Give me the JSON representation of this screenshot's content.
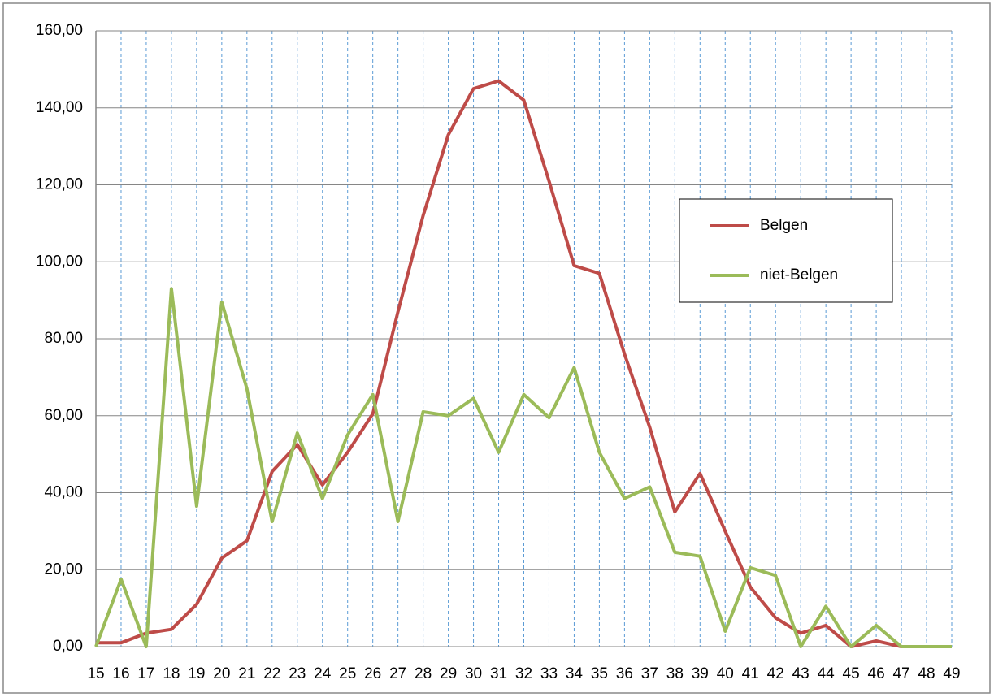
{
  "chart_data": {
    "type": "line",
    "x": [
      15,
      16,
      17,
      18,
      19,
      20,
      21,
      22,
      23,
      24,
      25,
      26,
      27,
      28,
      29,
      30,
      31,
      32,
      33,
      34,
      35,
      36,
      37,
      38,
      39,
      40,
      41,
      42,
      43,
      44,
      45,
      46,
      47,
      48,
      49
    ],
    "xlim": [
      15,
      49
    ],
    "xticks": [
      15,
      16,
      17,
      18,
      19,
      20,
      21,
      22,
      23,
      24,
      25,
      26,
      27,
      28,
      29,
      30,
      31,
      32,
      33,
      34,
      35,
      36,
      37,
      38,
      39,
      40,
      41,
      42,
      43,
      44,
      45,
      46,
      47,
      48,
      49
    ],
    "ylim": [
      0,
      160
    ],
    "yticks": [
      {
        "value": 0,
        "label": "0,00"
      },
      {
        "value": 20,
        "label": "20,00"
      },
      {
        "value": 40,
        "label": "40,00"
      },
      {
        "value": 60,
        "label": "60,00"
      },
      {
        "value": 80,
        "label": "80,00"
      },
      {
        "value": 100,
        "label": "100,00"
      },
      {
        "value": 120,
        "label": "120,00"
      },
      {
        "value": 140,
        "label": "140,00"
      },
      {
        "value": 160,
        "label": "160,00"
      }
    ],
    "grid": true,
    "legend": "right",
    "series": [
      {
        "name": "Belgen",
        "color": "#be4b48",
        "values": [
          1,
          1,
          3.5,
          4.5,
          11,
          23,
          27.5,
          45.5,
          52.5,
          42,
          50.5,
          60.5,
          87,
          112,
          133,
          145,
          147,
          142,
          121,
          99,
          97,
          76,
          57,
          35,
          45,
          30,
          15.5,
          7.5,
          3.5,
          5.5,
          0,
          1.5,
          0,
          0,
          0
        ]
      },
      {
        "name": "niet-Belgen",
        "color": "#9bbb59",
        "values": [
          0,
          17.5,
          0,
          93,
          36.5,
          89.5,
          67,
          32.5,
          55.5,
          38.5,
          55,
          65.5,
          32.5,
          61,
          60,
          64.5,
          50.5,
          65.5,
          59.5,
          72.5,
          50.5,
          38.5,
          41.5,
          24.5,
          23.5,
          4,
          20.5,
          18.5,
          0,
          10.5,
          0,
          5.5,
          0,
          0,
          0
        ]
      }
    ]
  }
}
